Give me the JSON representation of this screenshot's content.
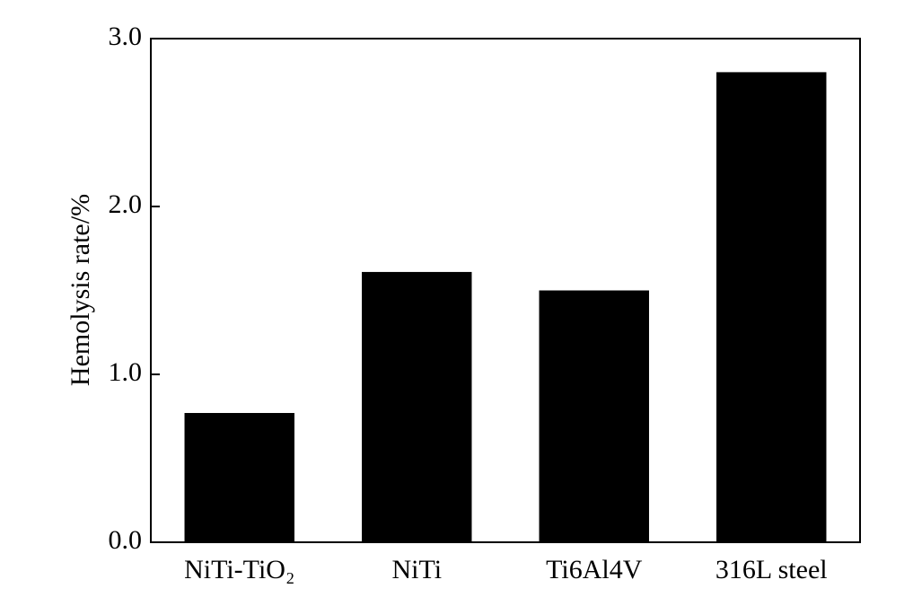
{
  "chart_data": {
    "type": "bar",
    "y_label": "Hemolysis rate/%",
    "categories": [
      "NiTi-TiO₂",
      "NiTi",
      "Ti6Al4V",
      "316L steel"
    ],
    "values": [
      0.77,
      1.61,
      1.5,
      2.8
    ],
    "color": "#000000",
    "ylim": [
      0,
      3
    ],
    "yticks": [
      {
        "value": 0,
        "label": "0.0"
      },
      {
        "value": 1,
        "label": "1.0"
      },
      {
        "value": 2,
        "label": "2.0"
      },
      {
        "value": 3,
        "label": "3.0"
      }
    ],
    "grid": false
  }
}
